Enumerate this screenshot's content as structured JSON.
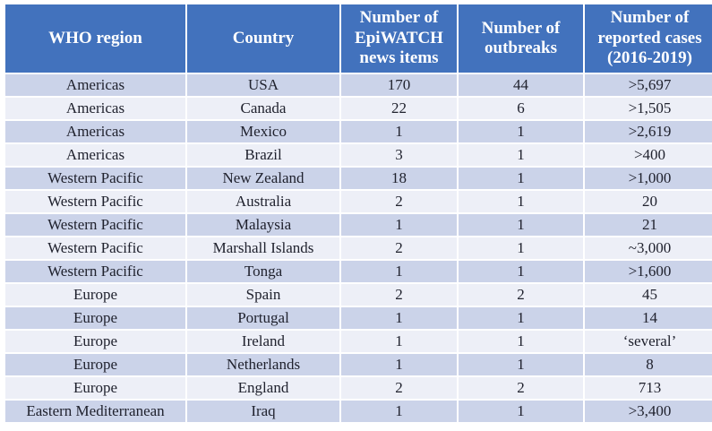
{
  "table": {
    "columns": [
      {
        "id": "region",
        "label": "WHO region"
      },
      {
        "id": "country",
        "label": "Country"
      },
      {
        "id": "news_items",
        "label": "Number of EpiWATCH news items"
      },
      {
        "id": "outbreaks",
        "label": "Number of outbreaks"
      },
      {
        "id": "cases",
        "label": "Number of reported cases (2016-2019)"
      }
    ],
    "rows": [
      {
        "region": "Americas",
        "country": "USA",
        "news_items": "170",
        "outbreaks": "44",
        "cases": ">5,697"
      },
      {
        "region": "Americas",
        "country": "Canada",
        "news_items": "22",
        "outbreaks": "6",
        "cases": ">1,505"
      },
      {
        "region": "Americas",
        "country": "Mexico",
        "news_items": "1",
        "outbreaks": "1",
        "cases": ">2,619"
      },
      {
        "region": "Americas",
        "country": "Brazil",
        "news_items": "3",
        "outbreaks": "1",
        "cases": ">400"
      },
      {
        "region": "Western Pacific",
        "country": "New Zealand",
        "news_items": "18",
        "outbreaks": "1",
        "cases": ">1,000"
      },
      {
        "region": "Western Pacific",
        "country": "Australia",
        "news_items": "2",
        "outbreaks": "1",
        "cases": "20"
      },
      {
        "region": "Western Pacific",
        "country": "Malaysia",
        "news_items": "1",
        "outbreaks": "1",
        "cases": "21"
      },
      {
        "region": "Western Pacific",
        "country": "Marshall Islands",
        "news_items": "2",
        "outbreaks": "1",
        "cases": "~3,000"
      },
      {
        "region": "Western Pacific",
        "country": "Tonga",
        "news_items": "1",
        "outbreaks": "1",
        "cases": ">1,600"
      },
      {
        "region": "Europe",
        "country": "Spain",
        "news_items": "2",
        "outbreaks": "2",
        "cases": "45"
      },
      {
        "region": "Europe",
        "country": "Portugal",
        "news_items": "1",
        "outbreaks": "1",
        "cases": "14"
      },
      {
        "region": "Europe",
        "country": "Ireland",
        "news_items": "1",
        "outbreaks": "1",
        "cases": "‘several’"
      },
      {
        "region": "Europe",
        "country": "Netherlands",
        "news_items": "1",
        "outbreaks": "1",
        "cases": "8"
      },
      {
        "region": "Europe",
        "country": "England",
        "news_items": "2",
        "outbreaks": "2",
        "cases": "713"
      },
      {
        "region": "Eastern Mediterranean",
        "country": "Iraq",
        "news_items": "1",
        "outbreaks": "1",
        "cases": ">3,400"
      }
    ],
    "colors": {
      "header_bg": "#4272BD",
      "header_text": "#FFFFFF",
      "band_dark": "#CBD3E9",
      "band_light": "#EDEFF7",
      "body_text": "#20222E",
      "page_background": "#FFFFFF"
    }
  }
}
